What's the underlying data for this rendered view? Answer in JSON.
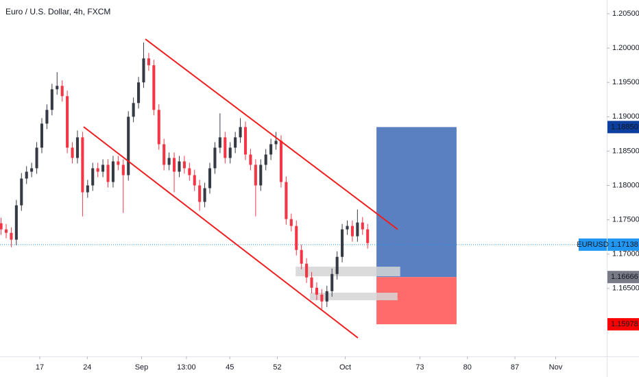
{
  "chart_data": {
    "type": "candlestick",
    "title": "Euro / U.S. Dollar, 4h, FXCM",
    "x": [
      11.3,
      12.05,
      12.8,
      13.55,
      14.3,
      15.05,
      15.8,
      16.55,
      17.3,
      18.05,
      18.8,
      19.55,
      20.3,
      21.05,
      21.8,
      22.55,
      23.3,
      24.05,
      24.8,
      25.55,
      26.3,
      27.05,
      27.8,
      28.55,
      29.3,
      30.05,
      30.8,
      31.55,
      32.3,
      33.05,
      33.8,
      34.55,
      35.3,
      36.05,
      36.8,
      37.55,
      38.3,
      39.05,
      39.8,
      40.55,
      41.3,
      42.05,
      42.8,
      43.55,
      44.3,
      45.05,
      45.8,
      46.55,
      47.3,
      48.05,
      48.8,
      49.55,
      50.3,
      51.05,
      51.8,
      52.55,
      53.3,
      54.05,
      54.8,
      55.55,
      56.3,
      57.05,
      57.8,
      58.55,
      59.3,
      60.05,
      60.8,
      61.55,
      62.3,
      63.05,
      63.8,
      64.55,
      65.3
    ],
    "open": [
      1.1745,
      1.1736,
      1.1731,
      1.1721,
      1.1771,
      1.181,
      1.182,
      1.1825,
      1.1855,
      1.189,
      1.191,
      1.194,
      1.1945,
      1.193,
      1.1855,
      1.184,
      1.187,
      1.179,
      1.18,
      1.1825,
      1.182,
      1.183,
      1.1805,
      1.1835,
      1.183,
      1.1815,
      1.19,
      1.192,
      1.195,
      1.1985,
      1.1975,
      1.191,
      1.186,
      1.183,
      1.184,
      1.182,
      1.1835,
      1.1825,
      1.1815,
      1.18,
      1.1776,
      1.1796,
      1.1825,
      1.1855,
      1.187,
      1.184,
      1.1855,
      1.187,
      1.1885,
      1.1845,
      1.183,
      1.18,
      1.183,
      1.1845,
      1.186,
      1.1865,
      1.1805,
      1.1751,
      1.1741,
      1.1706,
      1.1686,
      1.1666,
      1.1651,
      1.1641,
      1.1631,
      1.1646,
      1.1671,
      1.1696,
      1.1736,
      1.1741,
      1.1726,
      1.1746,
      1.1736
    ],
    "high": [
      1.1753,
      1.1744,
      1.1739,
      1.1779,
      1.1818,
      1.1828,
      1.1833,
      1.1863,
      1.1898,
      1.1918,
      1.1948,
      1.1965,
      1.1953,
      1.1938,
      1.1863,
      1.188,
      1.1878,
      1.1808,
      1.1833,
      1.1833,
      1.1838,
      1.1838,
      1.1843,
      1.1843,
      1.1838,
      1.1908,
      1.1928,
      1.1958,
      1.2008,
      1.1993,
      1.1983,
      1.1918,
      1.1868,
      1.1848,
      1.1848,
      1.1843,
      1.1843,
      1.1833,
      1.1823,
      1.1808,
      1.1804,
      1.1833,
      1.1863,
      1.1905,
      1.1878,
      1.1863,
      1.1878,
      1.1898,
      1.1893,
      1.1853,
      1.1838,
      1.1838,
      1.1853,
      1.1868,
      1.1878,
      1.1873,
      1.1813,
      1.1759,
      1.1749,
      1.1714,
      1.1694,
      1.1674,
      1.1659,
      1.1649,
      1.1654,
      1.1679,
      1.1704,
      1.1744,
      1.1749,
      1.1749,
      1.1765,
      1.1754,
      1.1744
    ],
    "low": [
      1.1728,
      1.1723,
      1.171,
      1.1713,
      1.1763,
      1.1802,
      1.1812,
      1.1817,
      1.1847,
      1.1882,
      1.1902,
      1.1932,
      1.1922,
      1.1847,
      1.1832,
      1.1832,
      1.1755,
      1.1782,
      1.1792,
      1.1812,
      1.1812,
      1.1797,
      1.1797,
      1.1822,
      1.176,
      1.1807,
      1.1892,
      1.1912,
      1.1942,
      1.1967,
      1.1902,
      1.1852,
      1.1822,
      1.1822,
      1.179,
      1.1812,
      1.1817,
      1.1807,
      1.1792,
      1.1763,
      1.1768,
      1.1788,
      1.1817,
      1.1847,
      1.1832,
      1.1832,
      1.1847,
      1.1862,
      1.1837,
      1.1822,
      1.1755,
      1.1792,
      1.1822,
      1.1837,
      1.1852,
      1.1797,
      1.1743,
      1.1733,
      1.1698,
      1.1678,
      1.1658,
      1.1643,
      1.1633,
      1.162,
      1.1623,
      1.1638,
      1.1663,
      1.1688,
      1.1728,
      1.1718,
      1.1718,
      1.1728,
      1.1708
    ],
    "close": [
      1.1736,
      1.1731,
      1.1721,
      1.1771,
      1.181,
      1.182,
      1.1825,
      1.1855,
      1.189,
      1.191,
      1.194,
      1.1945,
      1.193,
      1.1855,
      1.184,
      1.187,
      1.179,
      1.18,
      1.1825,
      1.182,
      1.183,
      1.1805,
      1.1835,
      1.183,
      1.1815,
      1.19,
      1.192,
      1.195,
      1.1985,
      1.1975,
      1.191,
      1.186,
      1.183,
      1.184,
      1.182,
      1.1835,
      1.1825,
      1.1815,
      1.18,
      1.1776,
      1.1796,
      1.1825,
      1.1855,
      1.187,
      1.184,
      1.1855,
      1.187,
      1.1885,
      1.1845,
      1.183,
      1.18,
      1.183,
      1.1845,
      1.186,
      1.1865,
      1.1805,
      1.1751,
      1.1741,
      1.1706,
      1.1686,
      1.1666,
      1.1651,
      1.1641,
      1.1631,
      1.1646,
      1.1671,
      1.1696,
      1.1736,
      1.1741,
      1.1726,
      1.1746,
      1.1736,
      1.1716
    ],
    "up_color": "#363a45",
    "down_color": "#f23645",
    "xlim": [
      11.14,
      100.53
    ],
    "ylim": [
      1.1551,
      1.207
    ],
    "xticks": [
      17,
      24,
      {
        "value": 32,
        "label": "Sep"
      },
      {
        "value": 38.6,
        "label": "13:00"
      },
      45,
      52,
      {
        "value": 62,
        "label": "Oct"
      },
      73,
      80,
      87,
      {
        "value": 93,
        "label": "Nov"
      }
    ],
    "yticks": [
      {
        "value": 1.205,
        "label": "1.20500"
      },
      {
        "value": 1.2,
        "label": "1.20000"
      },
      {
        "value": 1.195,
        "label": "1.19500"
      },
      {
        "value": 1.19,
        "label": "1.19000"
      },
      {
        "value": 1.185,
        "label": "1.18500"
      },
      {
        "value": 1.18,
        "label": "1.18000"
      },
      {
        "value": 1.175,
        "label": "1.17500"
      },
      {
        "value": 1.17,
        "label": "1.17000"
      },
      {
        "value": 1.165,
        "label": "1.16500"
      }
    ],
    "trendlines": [
      {
        "x": [
          32.56,
          69.73
        ],
        "y": [
          1.2013,
          1.1736
        ],
        "color": "#f01e1e"
      },
      {
        "x": [
          23.46,
          63.87
        ],
        "y": [
          1.18853,
          1.1578
        ],
        "color": "#f01e1e"
      }
    ],
    "zones": [
      {
        "x": [
          54.7,
          70.1
        ],
        "y": [
          1.16817,
          1.16677
        ],
        "color": "#d5d5d5"
      },
      {
        "x": [
          56.8,
          69.7
        ],
        "y": [
          1.16438,
          1.16328
        ],
        "color": "#d5d5d5"
      }
    ],
    "position": {
      "x": [
        66.6,
        78.4
      ],
      "target": {
        "value": 1.1885,
        "label": "1.18850"
      },
      "entry": 1.16666,
      "stop": 1.15978,
      "profit_color": "#5b80c1",
      "loss_color": "#ff6b6b",
      "target_badge_color": "#0d3f9e",
      "entry_badge_color": "#787b86",
      "stop_badge_color": "#ff0000"
    },
    "last_price": {
      "name": "EURUSD",
      "value": 1.17138,
      "color": "#2196f3"
    }
  }
}
